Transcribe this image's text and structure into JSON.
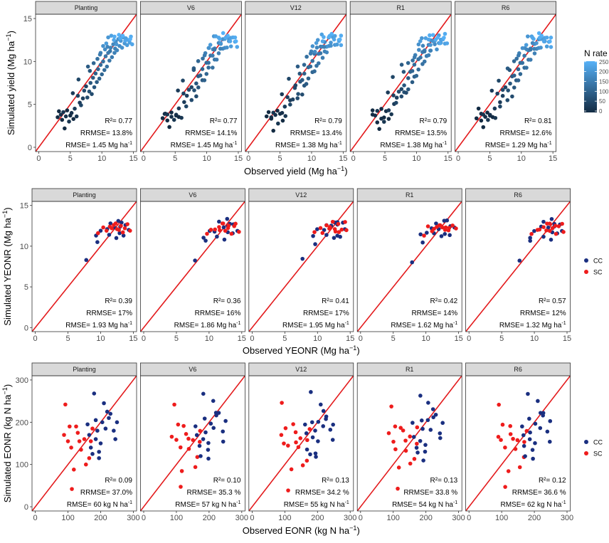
{
  "figure": {
    "legends": {
      "nrate_title": "N rate",
      "nrate_ticks": [
        "250",
        "200",
        "150",
        "100",
        "50",
        "0"
      ],
      "nrate_values": [
        250,
        200,
        150,
        100,
        50,
        0
      ],
      "group_labels": [
        "CC",
        "SC"
      ]
    }
  },
  "colors": {
    "cc": "#1a2f80",
    "sc": "#ee1c1c",
    "line": "#e31a1c",
    "strip": "#d9d9d9",
    "nrate_low": "#132b43",
    "nrate_high": "#56b1f7"
  },
  "chart_data": [
    {
      "type": "scatter",
      "row_id": "yield",
      "title": "",
      "xlabel": "Observed yield (Mg ha",
      "xlabel_exp": "−1",
      "xlabel_end": ")",
      "ylabel": "Simulated yield (Mg ha",
      "ylabel_exp": "−1",
      "ylabel_end": ")",
      "xlim": [
        -0.5,
        15.5
      ],
      "ylim": [
        -0.5,
        15.5
      ],
      "xticks": [
        0,
        5,
        10,
        15
      ],
      "yticks": [
        0,
        5,
        10,
        15
      ],
      "reference_line": "1:1",
      "color_by": "N rate",
      "panels": [
        {
          "title": "Planting",
          "r2": "R²= 0.77",
          "rrmse": "RRMSE= 13.8%",
          "rmse": "RMSE= 1.45 Mg ha",
          "rmse_exp": "-1"
        },
        {
          "title": "V6",
          "r2": "R²= 0.77",
          "rrmse": "RRMSE= 14.1%",
          "rmse": "RMSE= 1.45 Mg ha",
          "rmse_exp": "-1"
        },
        {
          "title": "V12",
          "r2": "R²= 0.79",
          "rrmse": "RRMSE= 13.4%",
          "rmse": "RMSE= 1.38 Mg ha",
          "rmse_exp": "-1"
        },
        {
          "title": "R1",
          "r2": "R²= 0.79",
          "rrmse": "RRMSE= 13.5%",
          "rmse": "RMSE= 1.38 Mg ha",
          "rmse_exp": "-1"
        },
        {
          "title": "R6",
          "r2": "R²= 0.81",
          "rrmse": "RRMSE= 12.6%",
          "rmse": "RMSE= 1.29 Mg ha",
          "rmse_exp": "-1"
        }
      ],
      "points": [
        [
          3.0,
          3.5,
          0
        ],
        [
          3.2,
          4.2,
          0
        ],
        [
          3.5,
          3.8,
          10
        ],
        [
          3.7,
          3.2,
          0
        ],
        [
          3.9,
          4.1,
          20
        ],
        [
          4.1,
          2.2,
          0
        ],
        [
          4.3,
          3.6,
          10
        ],
        [
          4.5,
          4.3,
          0
        ],
        [
          4.8,
          3.0,
          20
        ],
        [
          5.0,
          3.7,
          0
        ],
        [
          5.2,
          4.0,
          10
        ],
        [
          5.5,
          3.3,
          0
        ],
        [
          5.7,
          4.5,
          30
        ],
        [
          6.0,
          3.6,
          20
        ],
        [
          6.2,
          6.0,
          40
        ],
        [
          6.5,
          5.2,
          30
        ],
        [
          6.7,
          4.9,
          50
        ],
        [
          7.0,
          5.7,
          40
        ],
        [
          7.2,
          6.6,
          60
        ],
        [
          7.5,
          7.1,
          50
        ],
        [
          7.7,
          5.8,
          60
        ],
        [
          8.0,
          6.5,
          70
        ],
        [
          8.2,
          7.5,
          80
        ],
        [
          8.4,
          6.2,
          60
        ],
        [
          8.6,
          8.1,
          90
        ],
        [
          8.8,
          7.0,
          80
        ],
        [
          9.0,
          8.6,
          100
        ],
        [
          9.2,
          7.6,
          90
        ],
        [
          9.4,
          9.1,
          110
        ],
        [
          9.6,
          8.0,
          100
        ],
        [
          9.8,
          9.6,
          120
        ],
        [
          10.0,
          8.5,
          110
        ],
        [
          10.2,
          10.0,
          130
        ],
        [
          10.4,
          9.0,
          120
        ],
        [
          10.6,
          10.6,
          140
        ],
        [
          10.8,
          9.4,
          130
        ],
        [
          11.0,
          11.0,
          150
        ],
        [
          11.2,
          10.1,
          140
        ],
        [
          11.4,
          11.6,
          160
        ],
        [
          11.6,
          10.5,
          150
        ],
        [
          11.8,
          12.0,
          170
        ],
        [
          12.0,
          11.0,
          160
        ],
        [
          12.2,
          12.3,
          180
        ],
        [
          12.4,
          11.3,
          170
        ],
        [
          12.6,
          12.6,
          190
        ],
        [
          12.8,
          11.8,
          180
        ],
        [
          13.0,
          12.4,
          200
        ],
        [
          13.2,
          11.6,
          190
        ],
        [
          13.4,
          12.8,
          210
        ],
        [
          13.6,
          12.1,
          200
        ],
        [
          13.8,
          12.7,
          220
        ],
        [
          14.0,
          11.9,
          210
        ],
        [
          14.2,
          12.5,
          230
        ],
        [
          14.4,
          12.2,
          220
        ],
        [
          14.6,
          12.9,
          240
        ],
        [
          14.8,
          12.0,
          230
        ],
        [
          11.0,
          12.8,
          200
        ],
        [
          11.5,
          13.0,
          220
        ],
        [
          12.0,
          12.9,
          240
        ],
        [
          10.5,
          11.4,
          180
        ],
        [
          9.8,
          11.0,
          160
        ],
        [
          10.2,
          11.8,
          190
        ],
        [
          12.7,
          13.1,
          250
        ],
        [
          13.3,
          13.0,
          250
        ],
        [
          7.8,
          9.4,
          90
        ],
        [
          8.7,
          9.8,
          110
        ],
        [
          9.3,
          10.3,
          130
        ],
        [
          10.7,
          12.1,
          210
        ],
        [
          11.9,
          12.5,
          230
        ],
        [
          12.9,
          12.7,
          240
        ],
        [
          6.3,
          7.9,
          50
        ],
        [
          5.4,
          6.3,
          30
        ],
        [
          8.1,
          8.9,
          80
        ],
        [
          9.7,
          10.8,
          150
        ],
        [
          10.9,
          11.7,
          170
        ],
        [
          12.3,
          12.0,
          200
        ],
        [
          13.7,
          12.4,
          230
        ],
        [
          14.5,
          12.6,
          250
        ],
        [
          11.3,
          11.2,
          140
        ],
        [
          12.1,
          11.5,
          160
        ]
      ]
    },
    {
      "type": "scatter",
      "row_id": "yeonr",
      "title": "",
      "xlabel": "Observed YEONR (Mg ha",
      "xlabel_exp": "−1",
      "xlabel_end": ")",
      "ylabel": "Simulated YEONR (Mg  ha",
      "ylabel_exp": "−1",
      "ylabel_end": ")",
      "xlim": [
        -0.5,
        15.5
      ],
      "ylim": [
        -0.5,
        15.5
      ],
      "xticks": [
        0,
        5,
        10,
        15
      ],
      "yticks": [
        0,
        5,
        10,
        15
      ],
      "reference_line": "1:1",
      "color_by": "group",
      "panels": [
        {
          "title": "Planting",
          "r2": "R²= 0.39",
          "rrmse": "RRMSE= 17%",
          "rmse": "RMSE=  1.93 Mg ha",
          "rmse_exp": "-1"
        },
        {
          "title": "V6",
          "r2": "R²= 0.36",
          "rrmse": "RRMSE= 16%",
          "rmse": "RMSE= 1.86 Mg ha",
          "rmse_exp": "-1"
        },
        {
          "title": "V12",
          "r2": "R²= 0.41",
          "rrmse": "RRMSE= 17%",
          "rmse": "RMSE= 1.95 Mg ha",
          "rmse_exp": "-1"
        },
        {
          "title": "R1",
          "r2": "R²= 0.42",
          "rrmse": "RRMSE= 14%",
          "rmse": "RMSE= 1.62 Mg ha",
          "rmse_exp": "-1"
        },
        {
          "title": "R6",
          "r2": "R²= 0.57",
          "rrmse": "RRMSE= 12%",
          "rmse": "RMSE= 1.32 Mg ha",
          "rmse_exp": "-1"
        }
      ],
      "points": [
        [
          7.8,
          8.3,
          "CC"
        ],
        [
          9.3,
          11.3,
          "CC"
        ],
        [
          9.5,
          10.5,
          "CC"
        ],
        [
          10.0,
          11.9,
          "CC"
        ],
        [
          11.3,
          11.4,
          "CC"
        ],
        [
          11.5,
          12.8,
          "CC"
        ],
        [
          12.1,
          12.3,
          "CC"
        ],
        [
          12.4,
          11.0,
          "CC"
        ],
        [
          12.7,
          13.1,
          "CC"
        ],
        [
          13.0,
          12.4,
          "CC"
        ],
        [
          13.2,
          12.9,
          "CC"
        ],
        [
          13.5,
          11.3,
          "CC"
        ],
        [
          13.8,
          12.6,
          "CC"
        ],
        [
          14.3,
          12.0,
          "CC"
        ],
        [
          11.0,
          12.1,
          "CC"
        ],
        [
          12.9,
          11.6,
          "CC"
        ],
        [
          9.6,
          11.6,
          "SC"
        ],
        [
          10.4,
          12.3,
          "SC"
        ],
        [
          10.9,
          11.9,
          "SC"
        ],
        [
          11.4,
          12.4,
          "SC"
        ],
        [
          11.7,
          12.2,
          "SC"
        ],
        [
          12.0,
          12.6,
          "SC"
        ],
        [
          12.3,
          12.8,
          "SC"
        ],
        [
          12.5,
          12.1,
          "SC"
        ],
        [
          12.8,
          12.0,
          "SC"
        ],
        [
          13.1,
          12.5,
          "SC"
        ],
        [
          13.4,
          11.7,
          "SC"
        ],
        [
          13.7,
          12.2,
          "SC"
        ],
        [
          14.1,
          12.7,
          "SC"
        ],
        [
          14.5,
          11.9,
          "SC"
        ]
      ]
    },
    {
      "type": "scatter",
      "row_id": "eonr",
      "title": "",
      "xlabel": "Observed EONR (kg N ha",
      "xlabel_exp": "−1",
      "xlabel_end": ")",
      "ylabel": "Simulated EONR (kg N  ha",
      "ylabel_exp": "−1",
      "ylabel_end": ")",
      "xlim": [
        -10,
        310
      ],
      "ylim": [
        -10,
        310
      ],
      "xticks": [
        0,
        100,
        200,
        300
      ],
      "yticks": [
        0,
        100,
        200,
        300
      ],
      "reference_line": "1:1",
      "color_by": "group",
      "panels": [
        {
          "title": "Planting",
          "r2": "R²= 0.09",
          "rrmse": "RRMSE= 37.0%",
          "rmse": "RMSE= 60 kg N ha",
          "rmse_exp": "-1"
        },
        {
          "title": "V6",
          "r2": "R²= 0.10",
          "rrmse": "RRMSE= 35.3 %",
          "rmse": "RMSE= 57 kg N ha",
          "rmse_exp": "-1"
        },
        {
          "title": "V12",
          "r2": "R²= 0.13",
          "rrmse": "RRMSE= 34.2 %",
          "rmse": "RMSE= 55 kg N ha",
          "rmse_exp": "-1"
        },
        {
          "title": "R1",
          "r2": "R²= 0.13",
          "rrmse": "RRMSE= 33.8 %",
          "rmse": "RMSE= 54 kg N ha",
          "rmse_exp": "-1"
        },
        {
          "title": "R6",
          "r2": "R²= 0.12",
          "rrmse": "RRMSE= 36.6 %",
          "rmse": "RMSE= 62 kg N ha",
          "rmse_exp": "-1"
        }
      ],
      "points": [
        [
          92,
          242,
          "SC"
        ],
        [
          88,
          170,
          "SC"
        ],
        [
          105,
          190,
          "SC"
        ],
        [
          110,
          140,
          "SC"
        ],
        [
          118,
          88,
          "SC"
        ],
        [
          112,
          42,
          "SC"
        ],
        [
          125,
          190,
          "SC"
        ],
        [
          130,
          175,
          "SC"
        ],
        [
          135,
          155,
          "SC"
        ],
        [
          140,
          135,
          "SC"
        ],
        [
          150,
          160,
          "SC"
        ],
        [
          155,
          100,
          "SC"
        ],
        [
          165,
          115,
          "SC"
        ],
        [
          170,
          155,
          "SC"
        ],
        [
          175,
          185,
          "SC"
        ],
        [
          100,
          155,
          "SC"
        ],
        [
          180,
          268,
          "CC"
        ],
        [
          160,
          195,
          "CC"
        ],
        [
          170,
          140,
          "CC"
        ],
        [
          185,
          160,
          "CC"
        ],
        [
          190,
          180,
          "CC"
        ],
        [
          195,
          130,
          "CC"
        ],
        [
          200,
          150,
          "CC"
        ],
        [
          205,
          200,
          "CC"
        ],
        [
          210,
          245,
          "CC"
        ],
        [
          215,
          185,
          "CC"
        ],
        [
          220,
          225,
          "CC"
        ],
        [
          225,
          210,
          "CC"
        ],
        [
          230,
          220,
          "CC"
        ],
        [
          240,
          180,
          "CC"
        ],
        [
          245,
          160,
          "CC"
        ],
        [
          250,
          200,
          "CC"
        ],
        [
          195,
          115,
          "CC"
        ],
        [
          175,
          125,
          "CC"
        ],
        [
          185,
          205,
          "CC"
        ],
        [
          165,
          170,
          "CC"
        ]
      ]
    }
  ]
}
